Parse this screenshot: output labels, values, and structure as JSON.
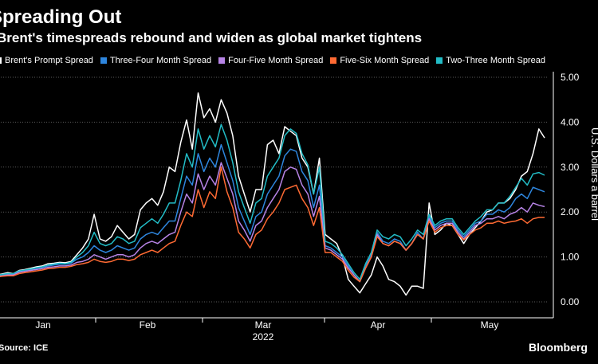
{
  "title": "Spreading Out",
  "subtitle": "Brent's timespreads rebound and widen as global market tightens",
  "source": "Source: ICE",
  "brand": "Bloomberg",
  "chart_data": {
    "type": "line",
    "title": "Spreading Out",
    "subtitle": "Brent's timespreads rebound and widen as global market tightens",
    "xlabel": "2022",
    "ylabel": "U.S. Dollars a barrel",
    "ylim": [
      -0.25,
      5.0
    ],
    "yticks": [
      {
        "value": 0,
        "label": "0.00"
      },
      {
        "value": 1,
        "label": "1.00"
      },
      {
        "value": 2,
        "label": "2.00"
      },
      {
        "value": 3,
        "label": "3.00"
      },
      {
        "value": 4,
        "label": "4.00"
      },
      {
        "value": 5,
        "label": "5.00"
      }
    ],
    "month_labels": [
      "Jan",
      "Feb",
      "Mar",
      "Apr",
      "May"
    ],
    "year_label": "2022",
    "grid": "horizontal dotted",
    "legend_placement": "top",
    "series": [
      {
        "name": "Brent's Prompt Spread",
        "color": "#ffffff",
        "values": [
          0.6,
          0.62,
          0.65,
          0.63,
          0.7,
          0.72,
          0.75,
          0.78,
          0.8,
          0.85,
          0.86,
          0.88,
          0.87,
          0.9,
          1.05,
          1.2,
          1.4,
          1.95,
          1.4,
          1.35,
          1.45,
          1.7,
          1.55,
          1.4,
          1.5,
          2.05,
          2.2,
          2.3,
          2.15,
          2.45,
          3.0,
          2.9,
          3.55,
          4.05,
          3.4,
          4.65,
          4.1,
          4.3,
          4.0,
          4.5,
          4.2,
          3.7,
          2.8,
          2.4,
          2.0,
          2.5,
          2.5,
          3.5,
          3.6,
          3.3,
          3.9,
          3.8,
          3.7,
          3.2,
          3.0,
          2.4,
          3.2,
          1.5,
          1.4,
          1.3,
          1.0,
          0.5,
          0.35,
          0.2,
          0.4,
          0.6,
          1.0,
          0.8,
          0.5,
          0.45,
          0.35,
          0.15,
          0.35,
          0.35,
          0.3,
          2.2,
          1.5,
          1.6,
          1.75,
          1.7,
          1.5,
          1.3,
          1.5,
          1.65,
          1.8,
          2.0,
          2.05,
          2.2,
          2.2,
          2.3,
          2.5,
          2.8,
          2.9,
          3.3,
          3.85,
          3.65
        ]
      },
      {
        "name": "Three-Four Month Spread",
        "color": "#2e86de",
        "values": [
          0.58,
          0.6,
          0.62,
          0.62,
          0.68,
          0.7,
          0.72,
          0.75,
          0.77,
          0.8,
          0.82,
          0.84,
          0.84,
          0.86,
          0.95,
          1.0,
          1.1,
          1.25,
          1.15,
          1.1,
          1.15,
          1.25,
          1.2,
          1.15,
          1.2,
          1.4,
          1.5,
          1.55,
          1.5,
          1.65,
          1.8,
          1.8,
          2.3,
          2.8,
          2.6,
          3.3,
          2.9,
          3.2,
          3.0,
          3.5,
          3.1,
          2.7,
          2.1,
          1.8,
          1.5,
          1.9,
          2.0,
          2.4,
          2.6,
          2.8,
          3.25,
          3.4,
          3.35,
          2.9,
          2.7,
          2.1,
          2.6,
          1.25,
          1.2,
          1.1,
          1.0,
          0.8,
          0.6,
          0.45,
          0.8,
          1.05,
          1.55,
          1.35,
          1.3,
          1.4,
          1.35,
          1.15,
          1.3,
          1.55,
          1.4,
          1.9,
          1.65,
          1.75,
          1.8,
          1.8,
          1.6,
          1.45,
          1.6,
          1.75,
          1.8,
          1.95,
          1.95,
          2.05,
          2.0,
          2.1,
          2.3,
          2.4,
          2.3,
          2.55,
          2.5,
          2.45
        ]
      },
      {
        "name": "Four-Five Month Spread",
        "color": "#b784e6",
        "values": [
          0.57,
          0.58,
          0.6,
          0.6,
          0.66,
          0.68,
          0.7,
          0.72,
          0.74,
          0.77,
          0.78,
          0.8,
          0.8,
          0.82,
          0.88,
          0.9,
          0.95,
          1.05,
          1.0,
          0.95,
          1.0,
          1.05,
          1.05,
          1.0,
          1.05,
          1.2,
          1.3,
          1.35,
          1.3,
          1.4,
          1.5,
          1.55,
          2.0,
          2.4,
          2.2,
          2.85,
          2.5,
          2.8,
          2.6,
          3.1,
          2.75,
          2.4,
          1.8,
          1.6,
          1.35,
          1.7,
          1.8,
          2.1,
          2.3,
          2.5,
          2.9,
          3.0,
          2.95,
          2.6,
          2.4,
          1.9,
          2.35,
          1.2,
          1.15,
          1.05,
          0.95,
          0.75,
          0.6,
          0.45,
          0.75,
          1.0,
          1.5,
          1.3,
          1.25,
          1.35,
          1.3,
          1.15,
          1.3,
          1.5,
          1.4,
          1.85,
          1.6,
          1.7,
          1.75,
          1.75,
          1.55,
          1.4,
          1.55,
          1.7,
          1.75,
          1.85,
          1.85,
          1.9,
          1.85,
          1.95,
          2.0,
          2.1,
          2.0,
          2.2,
          2.15,
          2.12
        ]
      },
      {
        "name": "Five-Six Month Spread",
        "color": "#ff6a33",
        "values": [
          0.55,
          0.57,
          0.58,
          0.58,
          0.63,
          0.65,
          0.67,
          0.69,
          0.71,
          0.74,
          0.75,
          0.77,
          0.77,
          0.79,
          0.83,
          0.85,
          0.88,
          0.95,
          0.9,
          0.88,
          0.9,
          0.95,
          0.95,
          0.92,
          0.95,
          1.05,
          1.1,
          1.15,
          1.1,
          1.2,
          1.3,
          1.35,
          1.7,
          2.0,
          1.9,
          2.5,
          2.1,
          2.45,
          2.3,
          3.0,
          2.45,
          2.1,
          1.55,
          1.4,
          1.2,
          1.5,
          1.6,
          1.85,
          2.0,
          2.2,
          2.5,
          2.55,
          2.6,
          2.3,
          2.1,
          1.7,
          2.1,
          1.1,
          1.1,
          1.0,
          0.9,
          0.7,
          0.55,
          0.45,
          0.75,
          1.0,
          1.45,
          1.3,
          1.25,
          1.35,
          1.3,
          1.15,
          1.3,
          1.5,
          1.4,
          1.8,
          1.55,
          1.65,
          1.7,
          1.7,
          1.5,
          1.38,
          1.5,
          1.6,
          1.65,
          1.75,
          1.75,
          1.8,
          1.75,
          1.78,
          1.8,
          1.85,
          1.75,
          1.85,
          1.88,
          1.88
        ]
      },
      {
        "name": "Two-Three Month Spread",
        "color": "#22bcc6",
        "values": [
          0.59,
          0.61,
          0.63,
          0.63,
          0.69,
          0.71,
          0.73,
          0.76,
          0.78,
          0.82,
          0.84,
          0.86,
          0.85,
          0.88,
          1.0,
          1.1,
          1.25,
          1.55,
          1.3,
          1.25,
          1.3,
          1.45,
          1.4,
          1.3,
          1.35,
          1.65,
          1.75,
          1.85,
          1.75,
          1.95,
          2.2,
          2.2,
          2.7,
          3.3,
          3.0,
          3.85,
          3.4,
          3.7,
          3.45,
          3.95,
          3.6,
          3.1,
          2.45,
          2.1,
          1.75,
          2.2,
          2.3,
          2.8,
          3.0,
          3.2,
          3.7,
          3.85,
          3.75,
          3.3,
          3.05,
          2.4,
          3.0,
          1.35,
          1.3,
          1.2,
          1.05,
          0.85,
          0.65,
          0.5,
          0.85,
          1.1,
          1.6,
          1.45,
          1.4,
          1.5,
          1.45,
          1.25,
          1.4,
          1.6,
          1.5,
          1.95,
          1.7,
          1.8,
          1.85,
          1.85,
          1.65,
          1.5,
          1.65,
          1.8,
          1.9,
          2.05,
          2.05,
          2.2,
          2.2,
          2.35,
          2.55,
          2.75,
          2.6,
          2.85,
          2.88,
          2.82
        ]
      }
    ]
  }
}
